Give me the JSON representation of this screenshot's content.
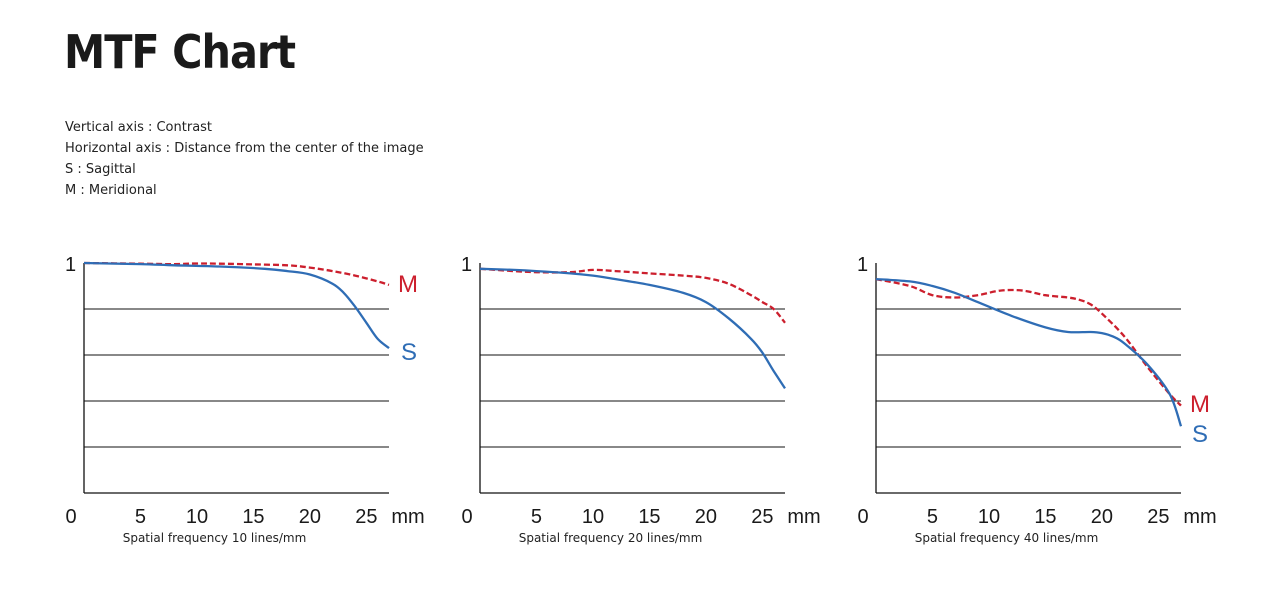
{
  "page": {
    "title": "MTF Chart",
    "notes": [
      "Vertical axis : Contrast",
      "Horizontal axis : Distance from the center of the image",
      "S : Sagittal",
      "M : Meridional"
    ]
  },
  "colors": {
    "sagittal": "#2f6db5",
    "meridional": "#cc1f2d",
    "axis": "#111111"
  },
  "chart_data": [
    {
      "type": "line",
      "title": "",
      "xlabel": "Spatial frequency 10 lines/mm",
      "ylabel": "",
      "xlim": [
        0,
        27
      ],
      "ylim": [
        0,
        1
      ],
      "x_ticks": [
        0,
        5,
        10,
        15,
        20,
        25
      ],
      "x_unit": "mm",
      "y_tick_label": "1",
      "gridlines_y": [
        0.2,
        0.4,
        0.6,
        0.8
      ],
      "series": [
        {
          "name": "S",
          "style": "solid",
          "color": "#2f6db5",
          "x": [
            0,
            5,
            8,
            12,
            16,
            18,
            20,
            22,
            23,
            24,
            25,
            26,
            27
          ],
          "y": [
            1.0,
            0.995,
            0.99,
            0.985,
            0.975,
            0.965,
            0.95,
            0.91,
            0.87,
            0.81,
            0.74,
            0.67,
            0.63
          ]
        },
        {
          "name": "M",
          "style": "dashed",
          "color": "#cc1f2d",
          "x": [
            0,
            5,
            8,
            10,
            12,
            15,
            18,
            20,
            22,
            24,
            26,
            27
          ],
          "y": [
            1.0,
            0.997,
            0.995,
            0.998,
            0.997,
            0.994,
            0.99,
            0.98,
            0.965,
            0.945,
            0.92,
            0.905
          ]
        }
      ]
    },
    {
      "type": "line",
      "title": "",
      "xlabel": "Spatial frequency 20 lines/mm",
      "ylabel": "",
      "xlim": [
        0,
        27
      ],
      "ylim": [
        0,
        1
      ],
      "x_ticks": [
        0,
        5,
        10,
        15,
        20,
        25
      ],
      "x_unit": "mm",
      "y_tick_label": "1",
      "gridlines_y": [
        0.2,
        0.4,
        0.6,
        0.8
      ],
      "series": [
        {
          "name": "S",
          "style": "solid",
          "color": "#2f6db5",
          "x": [
            0,
            3,
            5,
            8,
            10,
            12,
            15,
            18,
            20,
            22,
            24,
            25,
            26,
            27
          ],
          "y": [
            0.975,
            0.97,
            0.965,
            0.955,
            0.945,
            0.93,
            0.905,
            0.87,
            0.83,
            0.76,
            0.67,
            0.61,
            0.53,
            0.455
          ]
        },
        {
          "name": "M",
          "style": "dashed",
          "color": "#cc1f2d",
          "x": [
            0,
            3,
            5,
            8,
            10,
            12,
            15,
            18,
            20,
            22,
            24,
            25,
            26,
            27
          ],
          "y": [
            0.975,
            0.965,
            0.96,
            0.96,
            0.97,
            0.965,
            0.955,
            0.945,
            0.935,
            0.91,
            0.86,
            0.83,
            0.8,
            0.74
          ]
        }
      ]
    },
    {
      "type": "line",
      "title": "",
      "xlabel": "Spatial frequency 40 lines/mm",
      "ylabel": "",
      "xlim": [
        0,
        27
      ],
      "ylim": [
        0,
        1
      ],
      "x_ticks": [
        0,
        5,
        10,
        15,
        20,
        25
      ],
      "x_unit": "mm",
      "y_tick_label": "1",
      "gridlines_y": [
        0.2,
        0.4,
        0.6,
        0.8
      ],
      "series": [
        {
          "name": "S",
          "style": "solid",
          "color": "#2f6db5",
          "x": [
            0,
            3,
            5,
            7,
            9,
            12,
            15,
            17,
            19,
            20,
            21,
            22,
            24,
            26,
            27
          ],
          "y": [
            0.93,
            0.92,
            0.9,
            0.87,
            0.83,
            0.77,
            0.72,
            0.7,
            0.7,
            0.695,
            0.68,
            0.65,
            0.56,
            0.43,
            0.29
          ]
        },
        {
          "name": "M",
          "style": "dashed",
          "color": "#cc1f2d",
          "x": [
            0,
            3,
            5,
            7,
            9,
            11,
            13,
            15,
            17,
            18,
            19,
            20,
            22,
            24,
            26,
            27
          ],
          "y": [
            0.93,
            0.9,
            0.86,
            0.85,
            0.86,
            0.88,
            0.88,
            0.86,
            0.85,
            0.84,
            0.82,
            0.78,
            0.68,
            0.55,
            0.43,
            0.38
          ]
        }
      ]
    }
  ]
}
